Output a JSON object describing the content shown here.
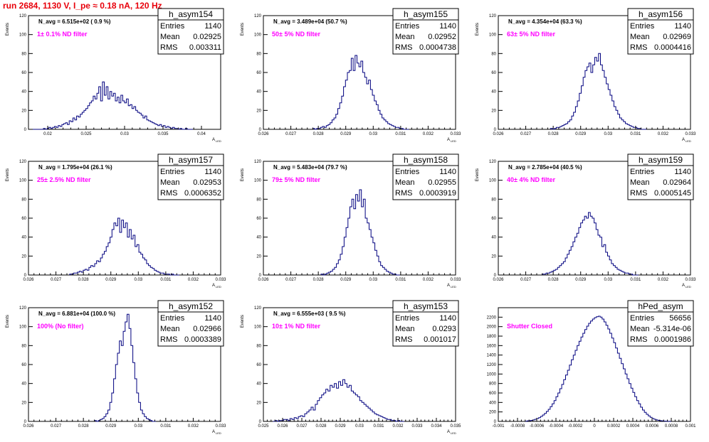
{
  "run_title": "run 2684,  1130 V, I_pe ≈ 0.18 nA, 120 Hz",
  "chart_data": [
    {
      "type": "bar",
      "name": "h_asym154",
      "navg": "N_avg = 6.515e+02 ( 0.9 %)",
      "filter": "1± 0.1% ND filter",
      "stats": {
        "Entries": "1140",
        "Mean": "0.02925",
        "RMS": "0.003311"
      },
      "ylabel": "Events",
      "xlabel": "A",
      "xlabel_sub": "LED",
      "xlim": [
        0.0175,
        0.0425
      ],
      "ylim": [
        0,
        120
      ],
      "xticks": [
        "0.02",
        "0.025",
        "0.03",
        "0.035",
        "0.04"
      ],
      "xtick_values": [
        0.02,
        0.025,
        0.03,
        0.035,
        0.04
      ],
      "yticks": [
        0,
        20,
        40,
        60,
        80,
        100,
        120
      ],
      "bins": {
        "start": 0.018,
        "width": 0.00024,
        "values": [
          0,
          0,
          0,
          0,
          0,
          0,
          1,
          0,
          1,
          2,
          1,
          2,
          3,
          2,
          4,
          3,
          5,
          6,
          7,
          5,
          9,
          8,
          12,
          10,
          14,
          13,
          16,
          18,
          20,
          22,
          25,
          28,
          30,
          35,
          32,
          38,
          45,
          30,
          50,
          36,
          45,
          32,
          40,
          35,
          38,
          30,
          34,
          28,
          36,
          30,
          28,
          32,
          25,
          26,
          22,
          24,
          20,
          18,
          17,
          15,
          12,
          14,
          10,
          9,
          8,
          7,
          6,
          5,
          4,
          5,
          3,
          4,
          2,
          3,
          2,
          1,
          2,
          1,
          1,
          0,
          1,
          0,
          0,
          1,
          0,
          0,
          0
        ]
      }
    },
    {
      "type": "bar",
      "name": "h_asym155",
      "navg": "N_avg = 3.489e+04 (50.7 %)",
      "filter": "50± 5% ND filter",
      "stats": {
        "Entries": "1140",
        "Mean": "0.02952",
        "RMS": "0.0004738"
      },
      "ylabel": "Events",
      "xlabel": "A",
      "xlabel_sub": "LED",
      "xlim": [
        0.026,
        0.033
      ],
      "ylim": [
        0,
        120
      ],
      "xticks": [
        "0.026",
        "0.027",
        "0.028",
        "0.029",
        "0.03",
        "0.031",
        "0.032",
        "0.033"
      ],
      "xtick_values": [
        0.026,
        0.027,
        0.028,
        0.029,
        0.03,
        0.031,
        0.032,
        0.033
      ],
      "yticks": [
        0,
        20,
        40,
        60,
        80,
        100,
        120
      ],
      "bins": {
        "start": 0.0278,
        "width": 7e-05,
        "values": [
          1,
          0,
          1,
          1,
          2,
          3,
          2,
          4,
          5,
          7,
          10,
          12,
          16,
          22,
          28,
          35,
          45,
          52,
          60,
          62,
          75,
          62,
          78,
          70,
          66,
          72,
          60,
          55,
          48,
          52,
          42,
          36,
          30,
          26,
          20,
          16,
          12,
          10,
          8,
          6,
          5,
          4,
          3,
          2,
          2,
          1,
          1,
          0,
          0,
          0
        ]
      }
    },
    {
      "type": "bar",
      "name": "h_asym156",
      "navg": "N_avg = 4.354e+04 (63.3 %)",
      "filter": "63± 5% ND filter",
      "stats": {
        "Entries": "1140",
        "Mean": "0.02969",
        "RMS": "0.0004416"
      },
      "ylabel": "Events",
      "xlabel": "A",
      "xlabel_sub": "LED",
      "xlim": [
        0.026,
        0.033
      ],
      "ylim": [
        0,
        120
      ],
      "xticks": [
        "0.026",
        "0.027",
        "0.028",
        "0.029",
        "0.03",
        "0.031",
        "0.032",
        "0.033"
      ],
      "xtick_values": [
        0.026,
        0.027,
        0.028,
        0.029,
        0.03,
        0.031,
        0.032,
        0.033
      ],
      "yticks": [
        0,
        20,
        40,
        60,
        80,
        100,
        120
      ],
      "bins": {
        "start": 0.0279,
        "width": 7e-05,
        "values": [
          1,
          0,
          1,
          2,
          2,
          3,
          4,
          5,
          6,
          8,
          10,
          14,
          18,
          24,
          30,
          38,
          46,
          55,
          62,
          66,
          70,
          60,
          68,
          76,
          72,
          80,
          68,
          62,
          55,
          48,
          42,
          36,
          30,
          24,
          20,
          16,
          12,
          10,
          8,
          6,
          5,
          4,
          3,
          2,
          2,
          1,
          1,
          0,
          0,
          0
        ]
      }
    },
    {
      "type": "bar",
      "name": "h_asym157",
      "navg": "N_avg = 1.795e+04 (26.1 %)",
      "filter": "25± 2.5% ND filter",
      "stats": {
        "Entries": "1140",
        "Mean": "0.02953",
        "RMS": "0.0006352"
      },
      "ylabel": "Events",
      "xlabel": "A",
      "xlabel_sub": "LED",
      "xlim": [
        0.026,
        0.033
      ],
      "ylim": [
        0,
        120
      ],
      "xticks": [
        "0.026",
        "0.027",
        "0.028",
        "0.029",
        "0.03",
        "0.031",
        "0.032",
        "0.033"
      ],
      "xtick_values": [
        0.026,
        0.027,
        0.028,
        0.029,
        0.03,
        0.031,
        0.032,
        0.033
      ],
      "yticks": [
        0,
        20,
        40,
        60,
        80,
        100,
        120
      ],
      "bins": {
        "start": 0.0275,
        "width": 7e-05,
        "values": [
          1,
          1,
          2,
          2,
          3,
          4,
          3,
          5,
          6,
          5,
          8,
          10,
          9,
          12,
          15,
          14,
          18,
          22,
          25,
          30,
          34,
          40,
          48,
          55,
          52,
          60,
          45,
          58,
          50,
          55,
          40,
          48,
          38,
          42,
          30,
          32,
          24,
          22,
          18,
          16,
          12,
          10,
          8,
          7,
          5,
          4,
          3,
          2,
          2,
          1,
          1,
          1,
          0,
          1,
          0,
          0,
          0
        ]
      }
    },
    {
      "type": "bar",
      "name": "h_asym158",
      "navg": "N_avg = 5.483e+04 (79.7 %)",
      "filter": "79± 5% ND filter",
      "stats": {
        "Entries": "1140",
        "Mean": "0.02955",
        "RMS": "0.0003919"
      },
      "ylabel": "Events",
      "xlabel": "A",
      "xlabel_sub": "LED",
      "xlim": [
        0.026,
        0.033
      ],
      "ylim": [
        0,
        120
      ],
      "xticks": [
        "0.026",
        "0.027",
        "0.028",
        "0.029",
        "0.03",
        "0.031",
        "0.032",
        "0.033"
      ],
      "xtick_values": [
        0.026,
        0.027,
        0.028,
        0.029,
        0.03,
        0.031,
        0.032,
        0.033
      ],
      "yticks": [
        0,
        20,
        40,
        60,
        80,
        100,
        120
      ],
      "bins": {
        "start": 0.0281,
        "width": 7e-05,
        "values": [
          1,
          0,
          1,
          2,
          3,
          4,
          6,
          8,
          12,
          16,
          22,
          30,
          40,
          50,
          60,
          72,
          80,
          70,
          85,
          78,
          90,
          72,
          80,
          60,
          55,
          48,
          40,
          34,
          26,
          20,
          14,
          10,
          8,
          6,
          4,
          3,
          2,
          1,
          1,
          0,
          0
        ]
      }
    },
    {
      "type": "bar",
      "name": "h_asym159",
      "navg": "N_avg = 2.785e+04 (40.5 %)",
      "filter": "40± 4% ND filter",
      "stats": {
        "Entries": "1140",
        "Mean": "0.02964",
        "RMS": "0.0005145"
      },
      "ylabel": "Events",
      "xlabel": "A",
      "xlabel_sub": "LED",
      "xlim": [
        0.026,
        0.033
      ],
      "ylim": [
        0,
        120
      ],
      "xticks": [
        "0.026",
        "0.027",
        "0.028",
        "0.029",
        "0.03",
        "0.031",
        "0.032",
        "0.033"
      ],
      "xtick_values": [
        0.026,
        0.027,
        0.028,
        0.029,
        0.03,
        0.031,
        0.032,
        0.033
      ],
      "yticks": [
        0,
        20,
        40,
        60,
        80,
        100,
        120
      ],
      "bins": {
        "start": 0.0276,
        "width": 7e-05,
        "values": [
          1,
          1,
          2,
          2,
          3,
          4,
          5,
          6,
          8,
          10,
          12,
          14,
          18,
          22,
          26,
          30,
          35,
          40,
          44,
          50,
          55,
          58,
          62,
          60,
          66,
          62,
          60,
          55,
          48,
          42,
          40,
          30,
          32,
          24,
          20,
          16,
          12,
          10,
          8,
          6,
          5,
          4,
          3,
          2,
          2,
          1,
          1,
          0,
          0,
          0
        ]
      }
    },
    {
      "type": "bar",
      "name": "h_asym152",
      "navg": "N_avg = 6.881e+04 (100.0 %)",
      "filter": "100% (No filter)",
      "stats": {
        "Entries": "1140",
        "Mean": "0.02966",
        "RMS": "0.0003389"
      },
      "ylabel": "Events",
      "xlabel": "A",
      "xlabel_sub": "LED",
      "xlim": [
        0.026,
        0.033
      ],
      "ylim": [
        0,
        120
      ],
      "xticks": [
        "0.026",
        "0.027",
        "0.028",
        "0.029",
        "0.03",
        "0.031",
        "0.032",
        "0.033"
      ],
      "xtick_values": [
        0.026,
        0.027,
        0.028,
        0.029,
        0.03,
        0.031,
        0.032,
        0.033
      ],
      "yticks": [
        0,
        20,
        40,
        60,
        80,
        100,
        120
      ],
      "bins": {
        "start": 0.0284,
        "width": 7e-05,
        "values": [
          1,
          0,
          1,
          2,
          3,
          5,
          8,
          12,
          20,
          30,
          45,
          60,
          72,
          85,
          80,
          95,
          105,
          113,
          98,
          80,
          62,
          45,
          30,
          20,
          12,
          8,
          5,
          3,
          2,
          1,
          0,
          0
        ]
      }
    },
    {
      "type": "bar",
      "name": "h_asym153",
      "navg": "N_avg = 6.555e+03 ( 9.5 %)",
      "filter": "10± 1% ND filter",
      "stats": {
        "Entries": "1140",
        "Mean": "0.0293",
        "RMS": "0.001017"
      },
      "ylabel": "Events",
      "xlabel": "A",
      "xlabel_sub": "LED",
      "xlim": [
        0.025,
        0.035
      ],
      "ylim": [
        0,
        120
      ],
      "xticks": [
        "0.025",
        "0.026",
        "0.027",
        "0.028",
        "0.029",
        "0.03",
        "0.031",
        "0.032",
        "0.033",
        "0.034",
        "0.035"
      ],
      "xtick_values": [
        0.025,
        0.026,
        0.027,
        0.028,
        0.029,
        0.03,
        0.031,
        0.032,
        0.033,
        0.034,
        0.035
      ],
      "yticks": [
        0,
        20,
        40,
        60,
        80,
        100,
        120
      ],
      "bins": {
        "start": 0.0255,
        "width": 0.00011,
        "values": [
          0,
          1,
          0,
          1,
          1,
          2,
          2,
          1,
          3,
          2,
          4,
          3,
          5,
          6,
          5,
          8,
          10,
          12,
          15,
          12,
          18,
          22,
          25,
          28,
          30,
          34,
          32,
          38,
          36,
          40,
          35,
          42,
          38,
          44,
          40,
          36,
          38,
          32,
          30,
          28,
          26,
          22,
          20,
          18,
          16,
          14,
          12,
          10,
          8,
          7,
          6,
          5,
          4,
          3,
          2,
          2,
          1,
          1,
          0,
          1,
          0,
          0
        ]
      }
    },
    {
      "type": "bar",
      "name": "hPed_asym",
      "navg": "",
      "filter": "Shutter Closed",
      "stats": {
        "Entries": "56656",
        "Mean": "-5.314e-06",
        "RMS": "0.0001986"
      },
      "ylabel": "",
      "xlabel": "",
      "xlabel_sub": "",
      "xlim": [
        -0.001,
        0.001
      ],
      "ylim": [
        0,
        2400
      ],
      "xticks": [
        "-0.001",
        "-0.0008",
        "-0.0006",
        "-0.0004",
        "-0.0002",
        "0",
        "0.0002",
        "0.0004",
        "0.0006",
        "0.0008",
        "0.001"
      ],
      "xtick_values": [
        -0.001,
        -0.0008,
        -0.0006,
        -0.0004,
        -0.0002,
        0,
        0.0002,
        0.0004,
        0.0006,
        0.0008,
        0.001
      ],
      "yticks": [
        0,
        200,
        400,
        600,
        800,
        1000,
        1200,
        1400,
        1600,
        1800,
        2000,
        2200
      ],
      "bins": {
        "start": -0.00072,
        "width": 2e-05,
        "values": [
          5,
          10,
          15,
          22,
          32,
          45,
          60,
          80,
          105,
          135,
          170,
          210,
          255,
          310,
          370,
          440,
          520,
          600,
          690,
          780,
          880,
          980,
          1080,
          1190,
          1300,
          1400,
          1500,
          1600,
          1690,
          1780,
          1860,
          1940,
          2010,
          2070,
          2120,
          2160,
          2190,
          2210,
          2220,
          2200,
          2160,
          2100,
          2030,
          1950,
          1860,
          1760,
          1660,
          1550,
          1440,
          1330,
          1220,
          1110,
          1000,
          900,
          800,
          700,
          610,
          520,
          440,
          370,
          300,
          240,
          190,
          150,
          115,
          85,
          62,
          45,
          32,
          22,
          15,
          10,
          6,
          4,
          2,
          1
        ]
      }
    }
  ]
}
